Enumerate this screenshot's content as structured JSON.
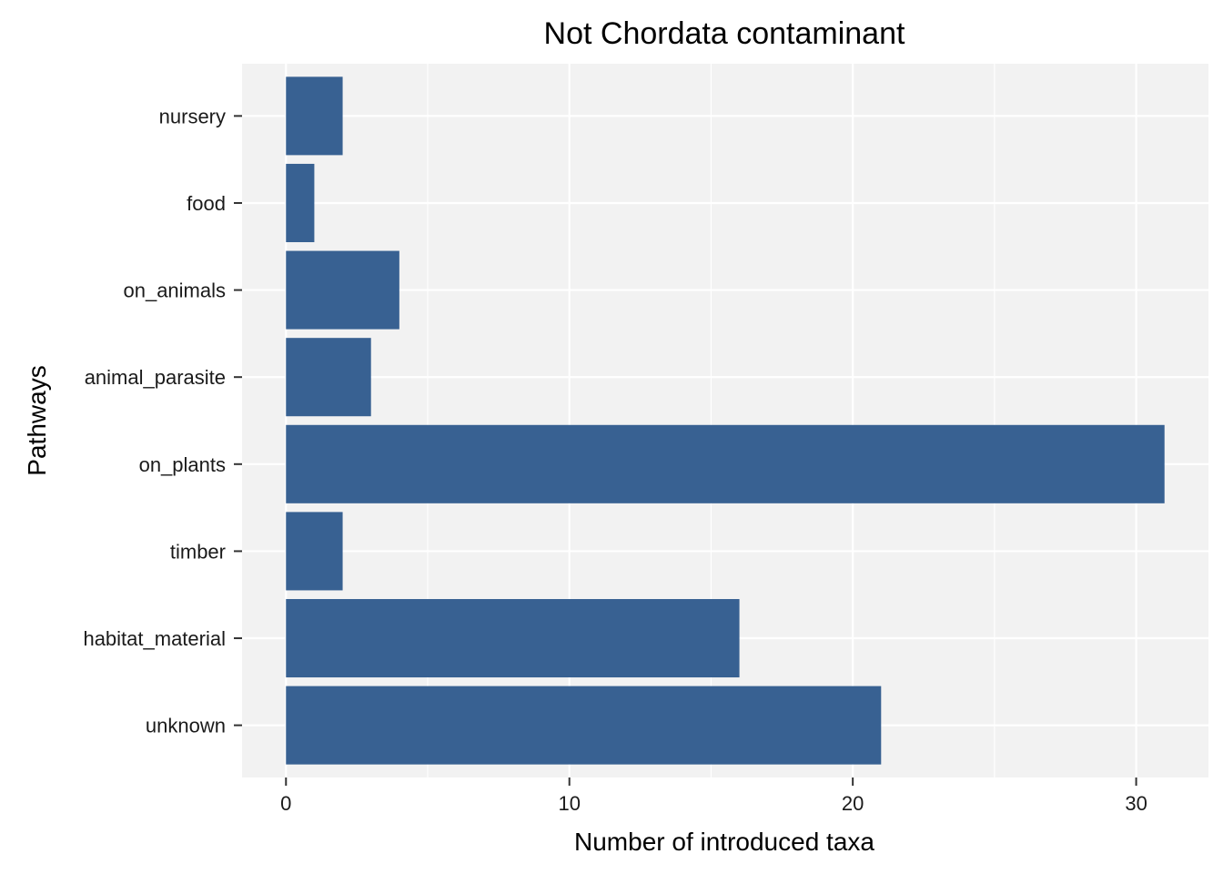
{
  "chart_data": {
    "type": "bar",
    "orientation": "horizontal",
    "title": "Not Chordata contaminant",
    "xlabel": "Number of introduced taxa",
    "ylabel": "Pathways",
    "categories": [
      "nursery",
      "food",
      "on_animals",
      "animal_parasite",
      "on_plants",
      "timber",
      "habitat_material",
      "unknown"
    ],
    "values": [
      2,
      1,
      4,
      3,
      31,
      2,
      16,
      21
    ],
    "xlim": [
      -1.55,
      32.55
    ],
    "xticks": [
      0,
      10,
      20,
      30
    ],
    "xtick_labels": [
      "0",
      "10",
      "20",
      "30"
    ],
    "grid": true,
    "bar_color": "#386192",
    "panel_color": "#f2f2f2",
    "grid_color": "#ffffff"
  }
}
